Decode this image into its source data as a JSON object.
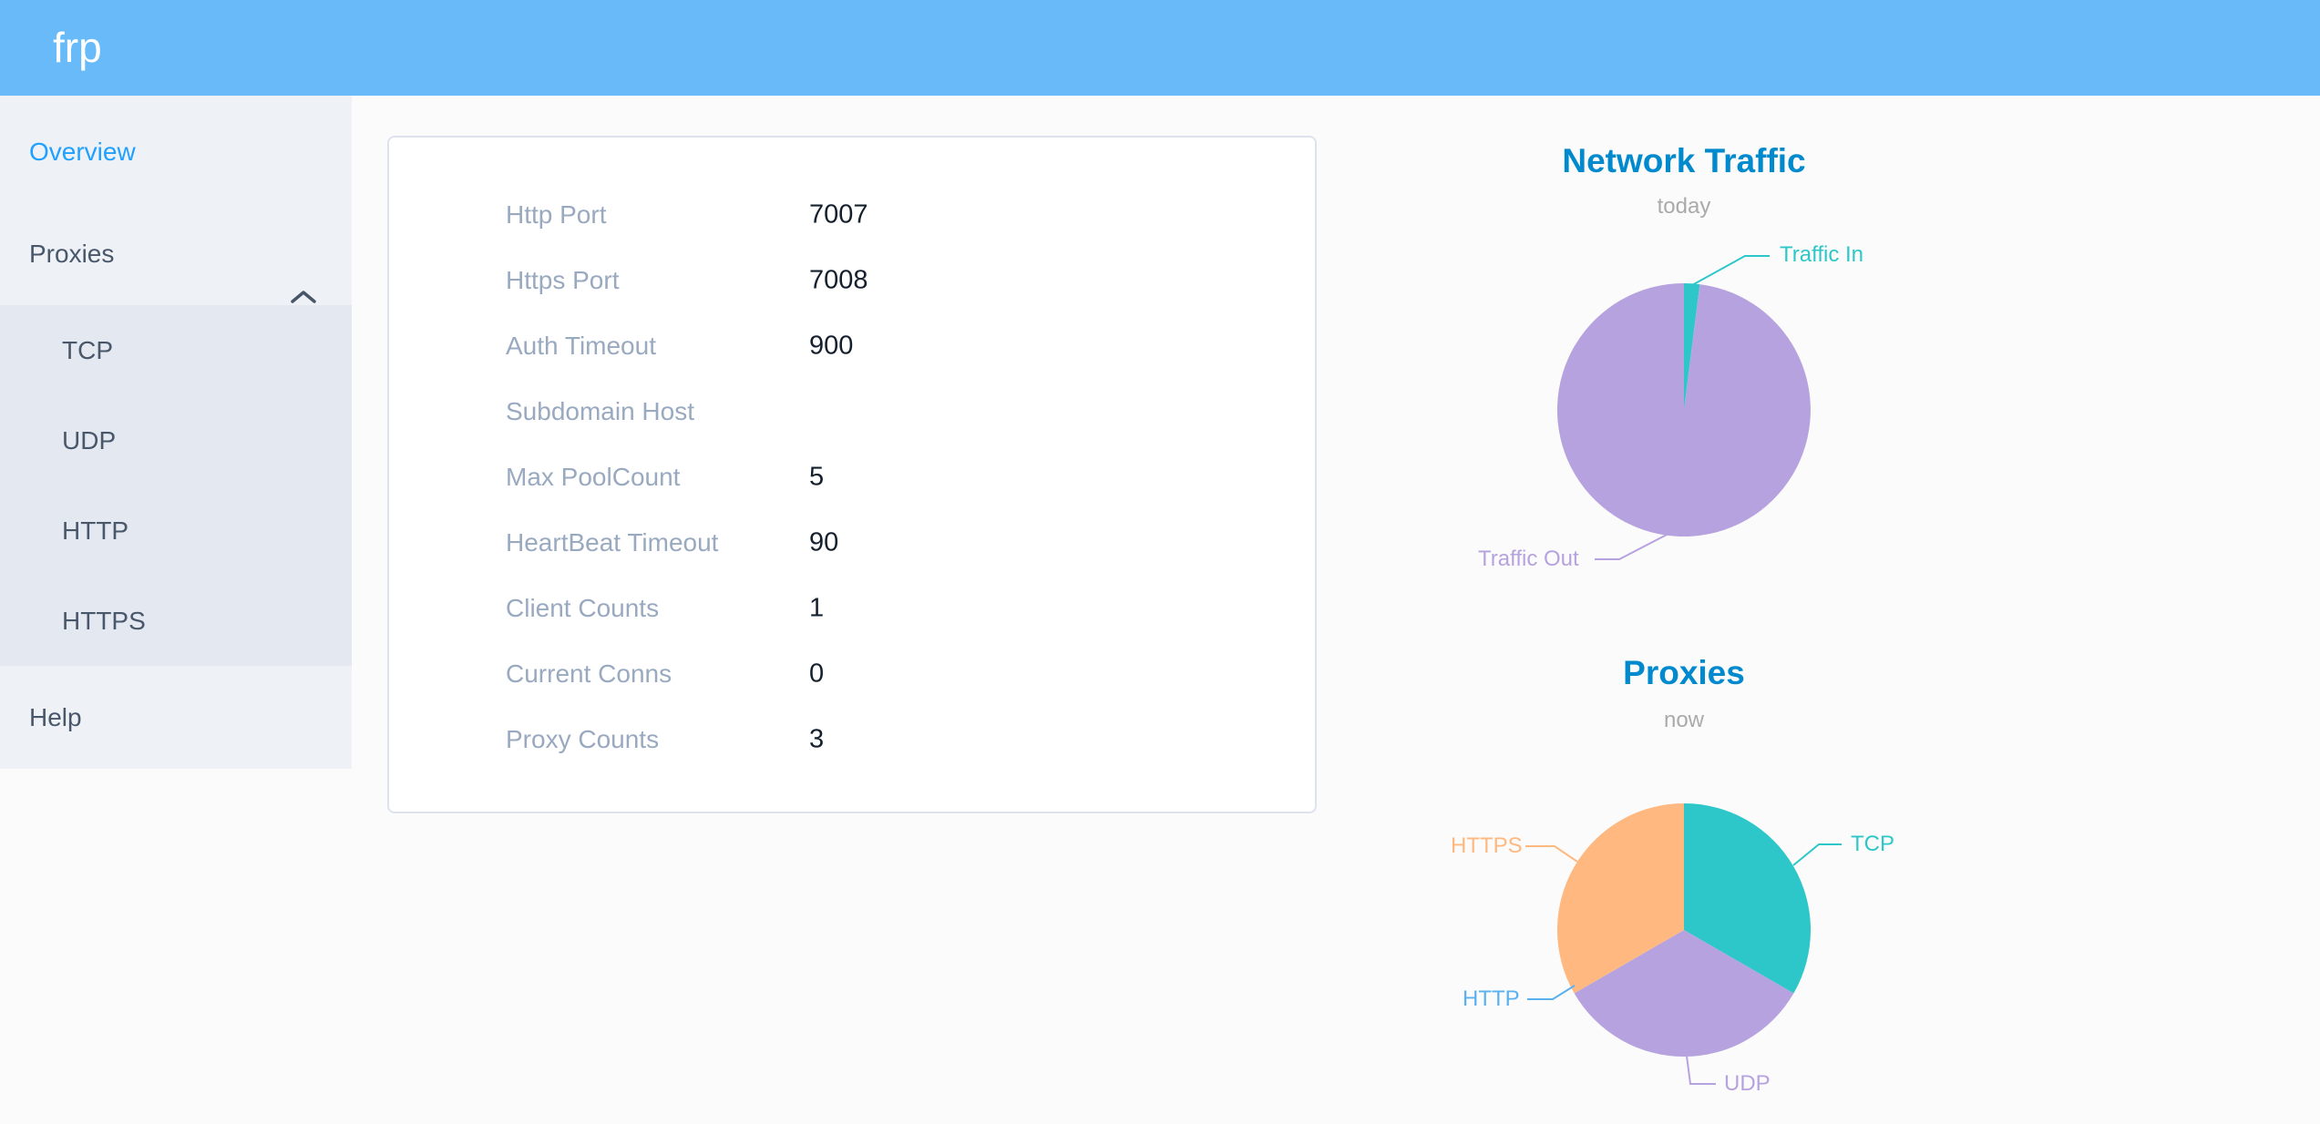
{
  "header": {
    "logo": "frp"
  },
  "sidebar": {
    "items": [
      {
        "label": "Overview",
        "active": true
      },
      {
        "label": "Proxies",
        "expanded": true,
        "children": [
          "TCP",
          "UDP",
          "HTTP",
          "HTTPS"
        ]
      },
      {
        "label": "Help"
      }
    ]
  },
  "config_panel": {
    "rows": [
      {
        "label": "Http Port",
        "value": "7007"
      },
      {
        "label": "Https Port",
        "value": "7008"
      },
      {
        "label": "Auth Timeout",
        "value": "900"
      },
      {
        "label": "Subdomain Host",
        "value": ""
      },
      {
        "label": "Max PoolCount",
        "value": "5"
      },
      {
        "label": "HeartBeat Timeout",
        "value": "90"
      },
      {
        "label": "Client Counts",
        "value": "1"
      },
      {
        "label": "Current Conns",
        "value": "0"
      },
      {
        "label": "Proxy Counts",
        "value": "3"
      }
    ]
  },
  "chart_data": [
    {
      "type": "pie",
      "title": "Network Traffic",
      "subtitle": "today",
      "legend_position": "none",
      "series": [
        {
          "name": "Traffic In",
          "value": 2,
          "color": "#2ec7c9"
        },
        {
          "name": "Traffic Out",
          "value": 98,
          "color": "#b6a2de"
        }
      ]
    },
    {
      "type": "pie",
      "title": "Proxies",
      "subtitle": "now",
      "legend_position": "none",
      "series": [
        {
          "name": "TCP",
          "value": 1,
          "color": "#2ec7c9"
        },
        {
          "name": "UDP",
          "value": 1,
          "color": "#b6a2de"
        },
        {
          "name": "HTTP",
          "value": 0,
          "color": "#5ab1ef"
        },
        {
          "name": "HTTPS",
          "value": 1,
          "color": "#ffb980"
        }
      ]
    }
  ],
  "colors": {
    "header_bg": "#68bbf8",
    "chart_title": "#008acd",
    "chart_subtitle": "#aaaaaa",
    "menu_text": "#48576a",
    "menu_active": "#20a0ff",
    "config_label": "#99a9bf"
  }
}
